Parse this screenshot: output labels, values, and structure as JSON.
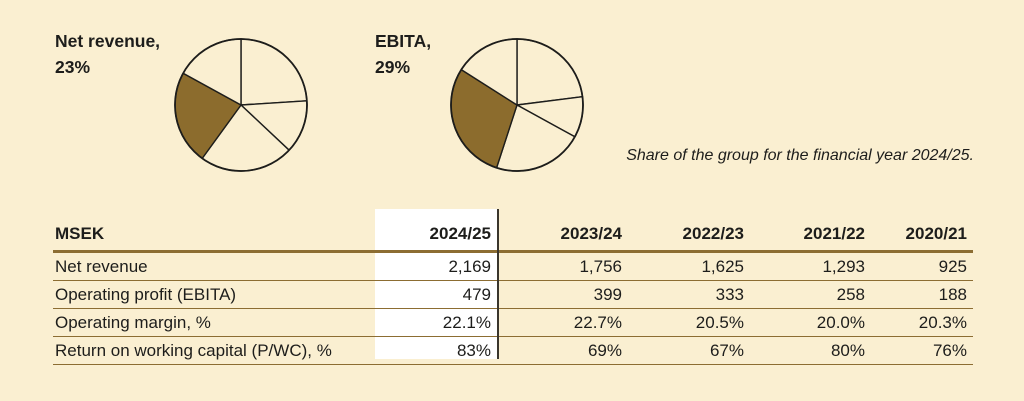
{
  "background_color": "#FAEFD1",
  "accent_brown": "#8C6C2D",
  "rule_color": "#8C6D32",
  "highlight_column_bg": "#FFFFFF",
  "caption": "Share of the group for the financial year 2024/25.",
  "chart_data": [
    {
      "type": "pie",
      "label_line1": "Net revenue,",
      "label_line2": "23%",
      "highlighted_share_pct": 23,
      "values": [
        24,
        13,
        23,
        23,
        17
      ],
      "highlight_index": 3,
      "start_angle_deg": 0,
      "colors": {
        "highlight": "#8C6C2D",
        "other": "#FAEFD1",
        "stroke": "#1D1D1B"
      }
    },
    {
      "type": "pie",
      "label_line1": "EBITA,",
      "label_line2": "29%",
      "highlighted_share_pct": 29,
      "values": [
        23,
        10,
        22,
        29,
        16
      ],
      "highlight_index": 3,
      "start_angle_deg": 0,
      "colors": {
        "highlight": "#8C6C2D",
        "other": "#FAEFD1",
        "stroke": "#1D1D1B"
      }
    }
  ],
  "table": {
    "unit_label": "MSEK",
    "highlighted_column": "2024/25",
    "year_columns": [
      "2024/25",
      "2023/24",
      "2022/23",
      "2021/22",
      "2020/21"
    ],
    "rows": [
      {
        "label": "Net revenue",
        "values": [
          "2,169",
          "1,756",
          "1,625",
          "1,293",
          "925"
        ]
      },
      {
        "label": "Operating profit (EBITA)",
        "values": [
          "479",
          "399",
          "333",
          "258",
          "188"
        ]
      },
      {
        "label": "Operating margin, %",
        "values": [
          "22.1%",
          "22.7%",
          "20.5%",
          "20.0%",
          "20.3%"
        ]
      },
      {
        "label": "Return on working capital (P/WC), %",
        "values": [
          "83%",
          "69%",
          "67%",
          "80%",
          "76%"
        ]
      }
    ]
  }
}
